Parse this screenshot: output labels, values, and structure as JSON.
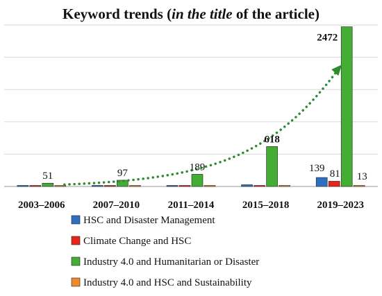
{
  "chart_data": {
    "type": "bar",
    "title": {
      "prefix": "Keyword trends (",
      "italic": "in the title",
      "suffix": " of the article)"
    },
    "categories": [
      "2003–2006",
      "2007–2010",
      "2011–2014",
      "2015–2018",
      "2019–2023"
    ],
    "series": [
      {
        "name": "HSC and Disaster Management",
        "color": "#2e6fc0",
        "values": [
          0,
          0,
          14,
          27,
          139
        ]
      },
      {
        "name": "Climate Change and HSC",
        "color": "#e8251b",
        "values": [
          0,
          0,
          8,
          16,
          81
        ]
      },
      {
        "name": "Industry 4.0 and Humanitarian or Disaster",
        "color": "#43ad34",
        "values": [
          51,
          97,
          189,
          618,
          2472
        ]
      },
      {
        "name": "Industry 4.0 and HSC and Sustainability",
        "color": "#f08a2c",
        "values": [
          0,
          0,
          0,
          0,
          13
        ]
      }
    ],
    "data_labels": [
      {
        "category": 0,
        "series": 2,
        "text": "51",
        "bold": false
      },
      {
        "category": 1,
        "series": 2,
        "text": "97",
        "bold": false
      },
      {
        "category": 2,
        "series": 2,
        "text": "189",
        "bold": false
      },
      {
        "category": 3,
        "series": 2,
        "text": "618",
        "bold": true
      },
      {
        "category": 4,
        "series": 2,
        "text": "2472",
        "bold": true
      },
      {
        "category": 4,
        "series": 0,
        "text": "139",
        "bold": false
      },
      {
        "category": 4,
        "series": 1,
        "text": "81",
        "bold": false
      },
      {
        "category": 4,
        "series": 3,
        "text": "13",
        "bold": false
      }
    ],
    "ylim": [
      0,
      2500
    ],
    "gridlines": [
      500,
      1000,
      1500,
      2000,
      2500
    ],
    "grid": true,
    "trendline": {
      "style": "dotted",
      "color": "#2e8b2e",
      "arrow": true
    },
    "legend_position": "bottom"
  }
}
